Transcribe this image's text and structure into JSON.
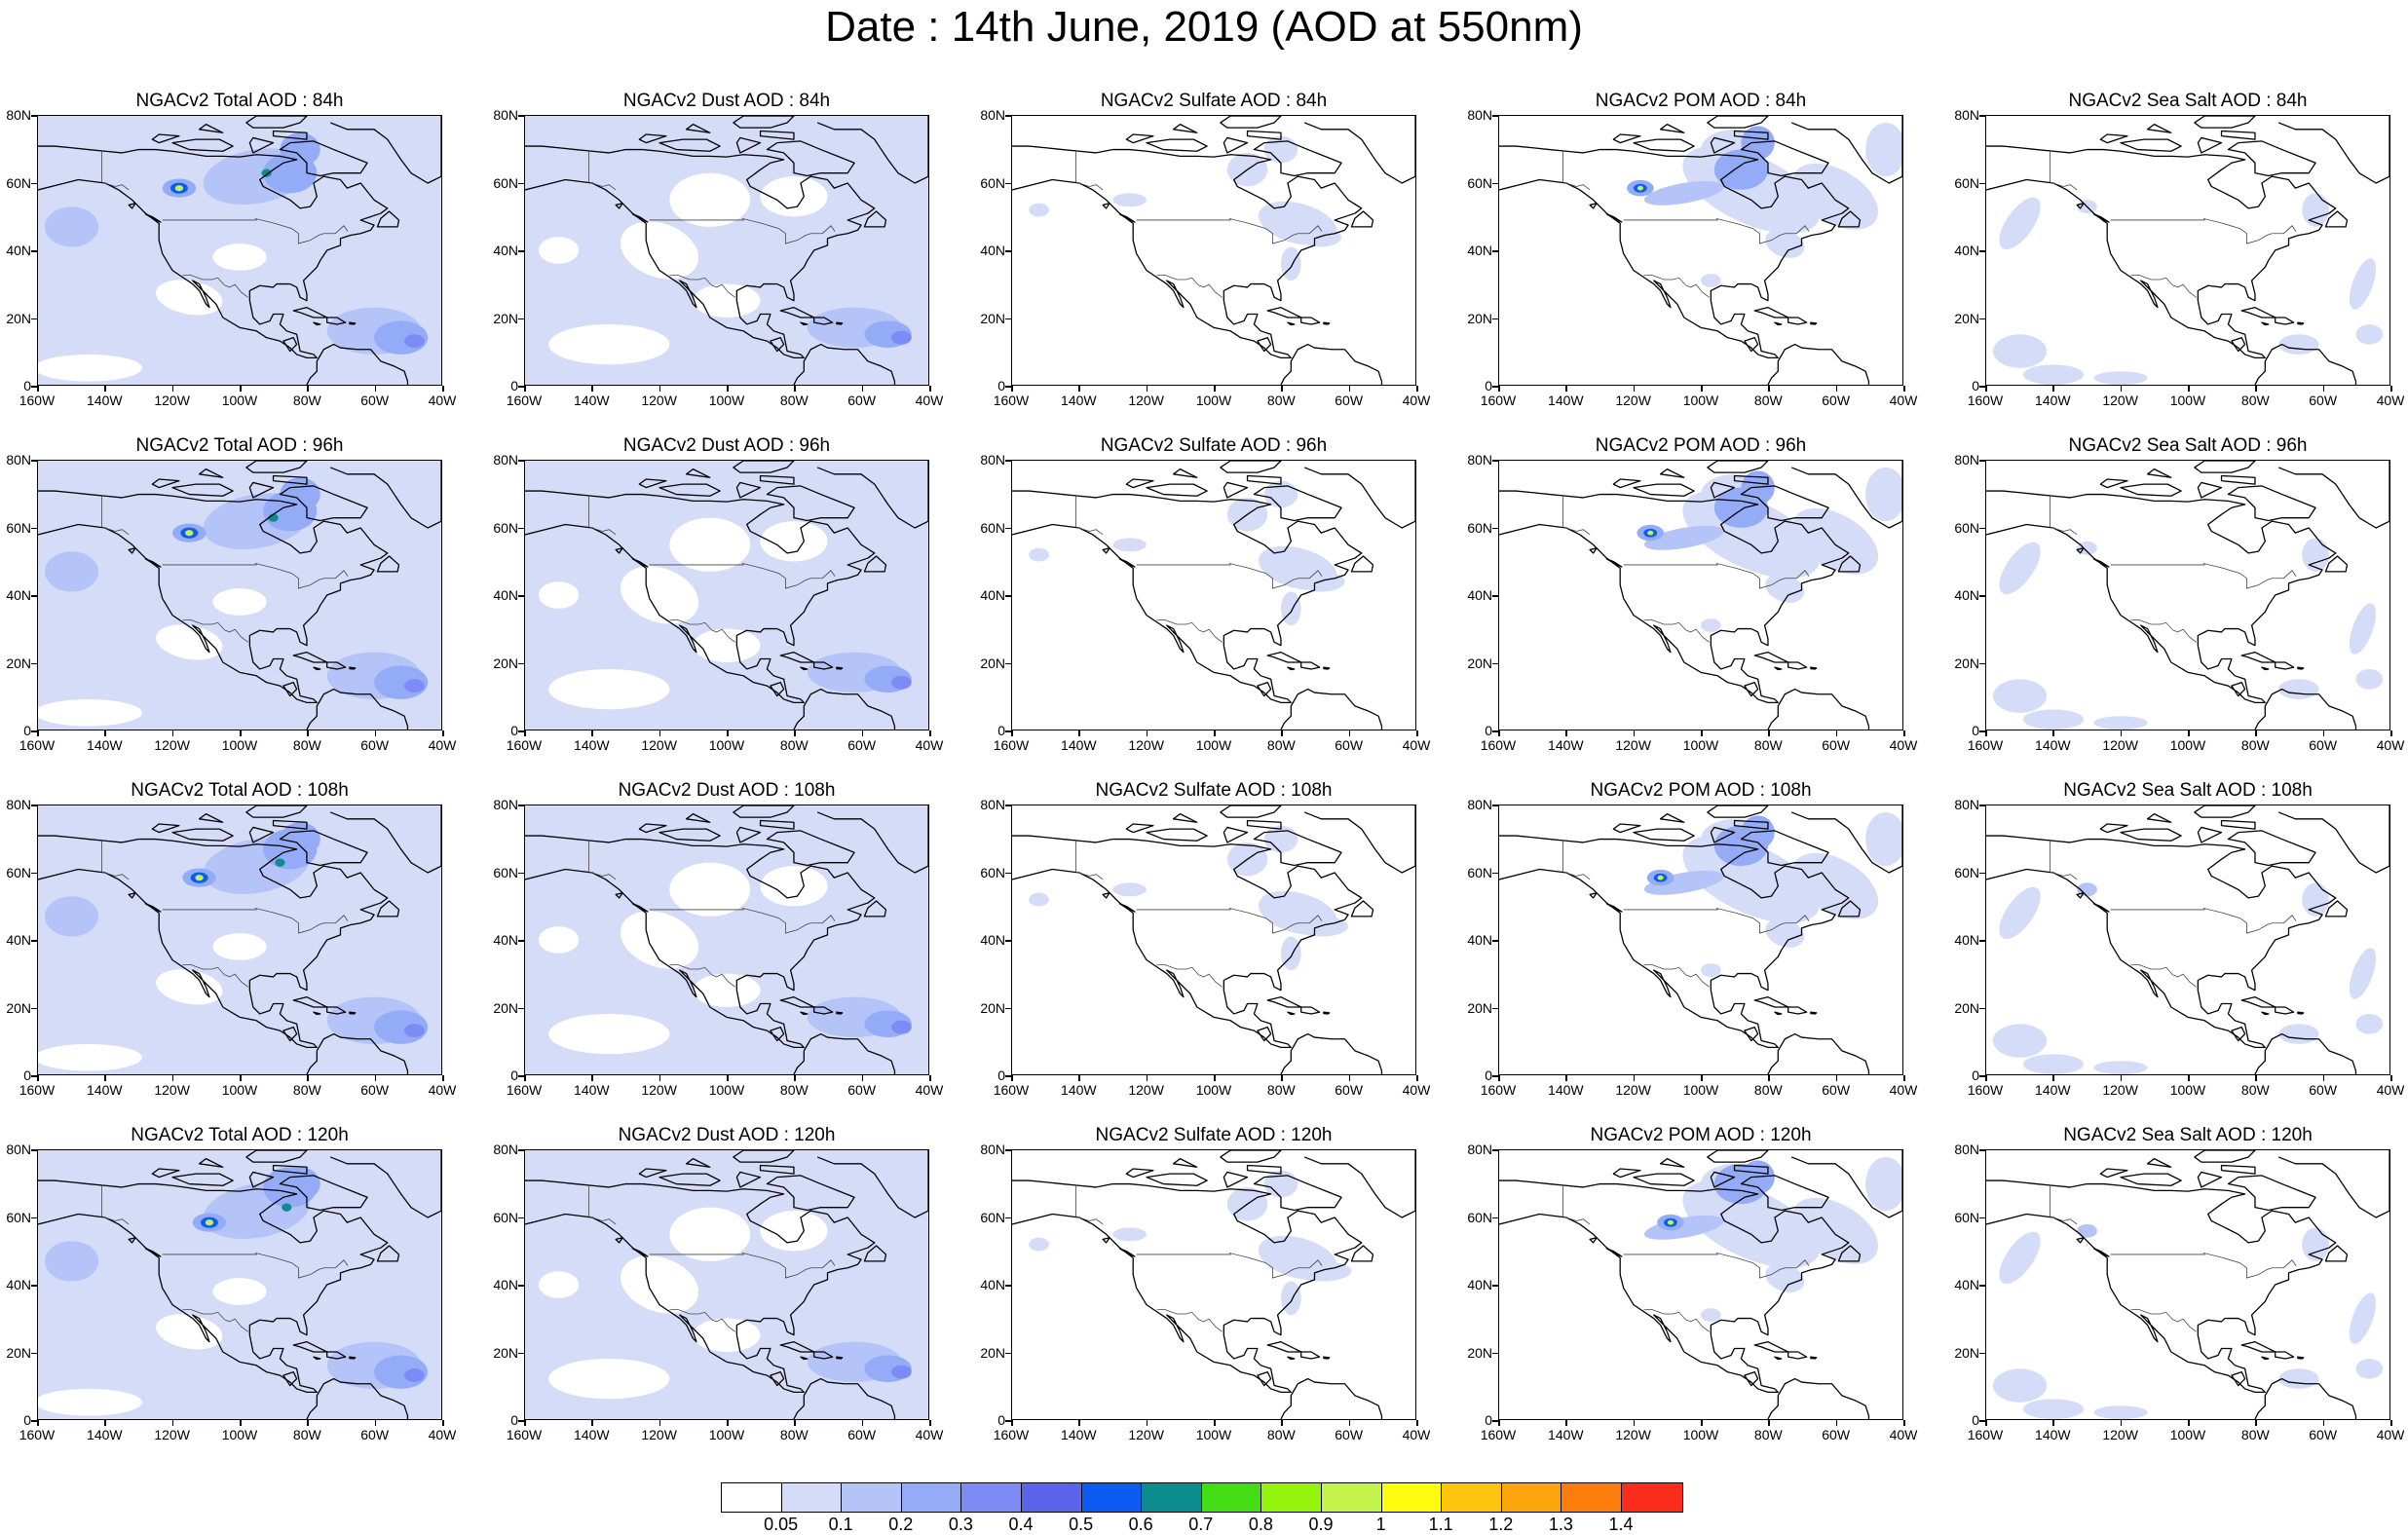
{
  "title": "Date : 14th June, 2019 (AOD at 550nm)",
  "y_axis_labels": [
    "80N",
    "60N",
    "40N",
    "20N",
    "0"
  ],
  "x_axis_labels": [
    "160W",
    "140W",
    "120W",
    "100W",
    "80W",
    "60W",
    "40W"
  ],
  "rows": [
    {
      "lead_time": "84h",
      "panels": [
        {
          "species": "total",
          "title": "NGACv2 Total AOD : 84h"
        },
        {
          "species": "dust",
          "title": "NGACv2 Dust AOD : 84h"
        },
        {
          "species": "sulfate",
          "title": "NGACv2 Sulfate AOD : 84h"
        },
        {
          "species": "pom",
          "title": "NGACv2 POM AOD : 84h"
        },
        {
          "species": "seasalt",
          "title": "NGACv2 Sea Salt AOD : 84h"
        }
      ]
    },
    {
      "lead_time": "96h",
      "panels": [
        {
          "species": "total",
          "title": "NGACv2 Total AOD : 96h"
        },
        {
          "species": "dust",
          "title": "NGACv2 Dust AOD : 96h"
        },
        {
          "species": "sulfate",
          "title": "NGACv2 Sulfate AOD : 96h"
        },
        {
          "species": "pom",
          "title": "NGACv2 POM AOD : 96h"
        },
        {
          "species": "seasalt",
          "title": "NGACv2 Sea Salt AOD : 96h"
        }
      ]
    },
    {
      "lead_time": "108h",
      "panels": [
        {
          "species": "total",
          "title": "NGACv2 Total AOD : 108h"
        },
        {
          "species": "dust",
          "title": "NGACv2 Dust AOD : 108h"
        },
        {
          "species": "sulfate",
          "title": "NGACv2 Sulfate AOD : 108h"
        },
        {
          "species": "pom",
          "title": "NGACv2 POM AOD : 108h"
        },
        {
          "species": "seasalt",
          "title": "NGACv2 Sea Salt AOD : 108h"
        }
      ]
    },
    {
      "lead_time": "120h",
      "panels": [
        {
          "species": "total",
          "title": "NGACv2 Total AOD : 120h"
        },
        {
          "species": "dust",
          "title": "NGACv2 Dust AOD : 120h"
        },
        {
          "species": "sulfate",
          "title": "NGACv2 Sulfate AOD : 120h"
        },
        {
          "species": "pom",
          "title": "NGACv2 POM AOD : 120h"
        },
        {
          "species": "seasalt",
          "title": "NGACv2 Sea Salt  AOD : 120h"
        }
      ]
    }
  ],
  "colorbar": {
    "labels": [
      "0.05",
      "0.1",
      "0.2",
      "0.3",
      "0.4",
      "0.5",
      "0.6",
      "0.7",
      "0.8",
      "0.9",
      "1",
      "1.1",
      "1.2",
      "1.3",
      "1.4"
    ],
    "colors": [
      "#ffffff",
      "#d4dcf8",
      "#b4c4f8",
      "#94acf8",
      "#7c8cf4",
      "#5c64ec",
      "#0c5cf4",
      "#0c8c8c",
      "#44dc14",
      "#94f40c",
      "#c4f44c",
      "#fcfc0c",
      "#fcc40c",
      "#fca40c",
      "#fc7c0c",
      "#fc2c1c"
    ]
  }
}
